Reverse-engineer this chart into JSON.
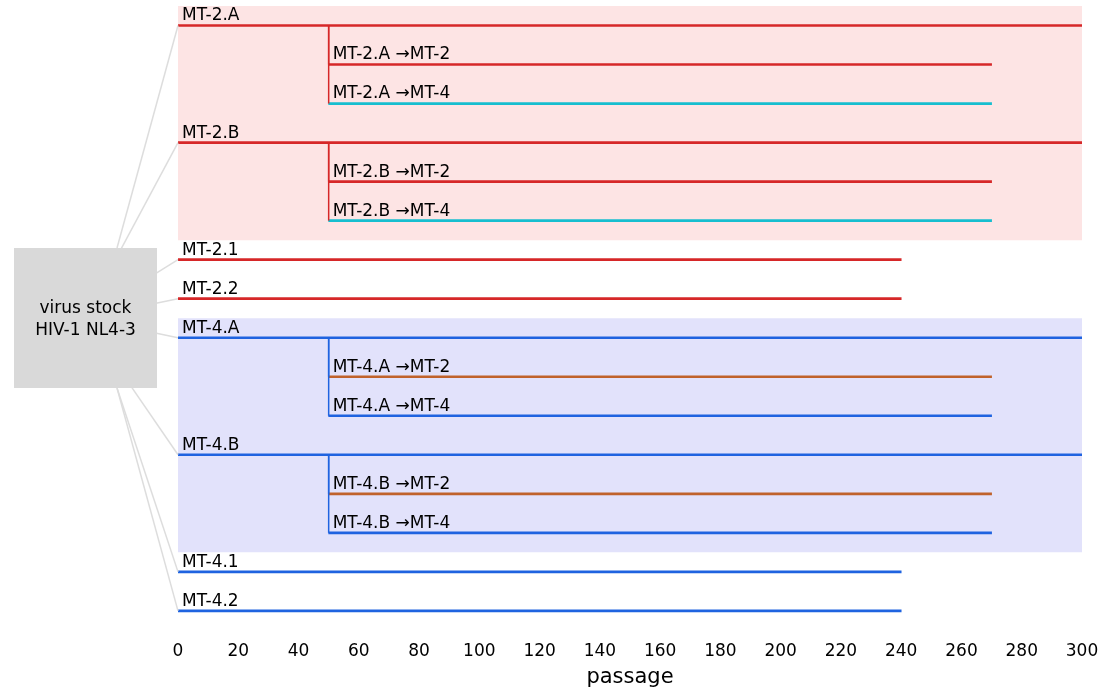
{
  "chart_data": {
    "type": "bar",
    "orientation": "horizontal",
    "categories": [
      "MT-2.A",
      "MT-2.A →MT-2",
      "MT-2.A →MT-4",
      "MT-2.B",
      "MT-2.B →MT-2",
      "MT-2.B →MT-4",
      "MT-2.1",
      "MT-2.2",
      "MT-4.A",
      "MT-4.A →MT-2",
      "MT-4.A →MT-4",
      "MT-4.B",
      "MT-4.B →MT-2",
      "MT-4.B →MT-4",
      "MT-4.1",
      "MT-4.2"
    ],
    "base": [
      0,
      50,
      50,
      0,
      50,
      50,
      0,
      0,
      0,
      50,
      50,
      0,
      50,
      50,
      0,
      0
    ],
    "values": [
      300,
      220,
      220,
      300,
      220,
      220,
      240,
      240,
      300,
      220,
      220,
      300,
      220,
      220,
      240,
      240
    ],
    "colors": [
      "#d62728",
      "#d62728",
      "#17becf",
      "#d62728",
      "#d62728",
      "#17becf",
      "#d62728",
      "#d62728",
      "#1f63e0",
      "#c0622b",
      "#1f63e0",
      "#1f63e0",
      "#c0622b",
      "#1f63e0",
      "#1f63e0",
      "#1f63e0"
    ],
    "xlim": [
      0,
      300
    ],
    "xticks": [
      0,
      20,
      40,
      60,
      80,
      100,
      120,
      140,
      160,
      180,
      200,
      220,
      240,
      260,
      280,
      300
    ],
    "xlabel": "passage",
    "bands": [
      {
        "axis": "y",
        "from": "MT-2.A",
        "to": "MT-2.B →MT-4",
        "color": "#fde4e4"
      },
      {
        "axis": "y",
        "from": "MT-4.A",
        "to": "MT-4.B →MT-4",
        "color": "#e2e2fb"
      }
    ],
    "annotations": [
      "virus stock HIV-1 NL4-3"
    ],
    "grid": false,
    "legend": false
  }
}
